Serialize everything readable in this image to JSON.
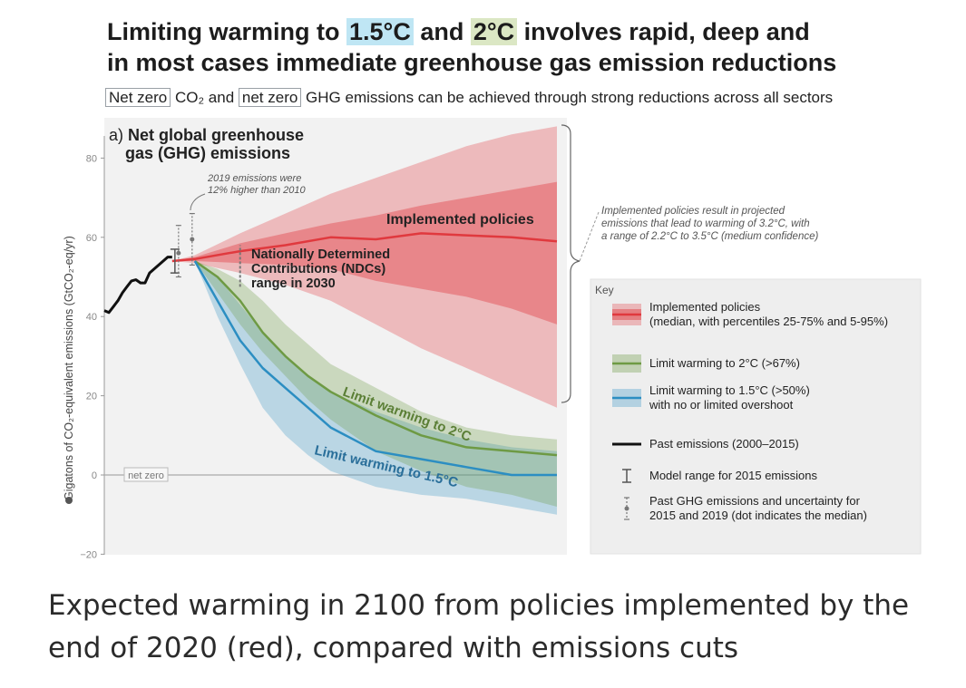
{
  "header": {
    "title_pre": "Limiting warming to ",
    "title_hl1": "1.5°C",
    "title_mid": " and ",
    "title_hl2": "2°C",
    "title_post1": " involves rapid, deep and",
    "title_line2": "in most cases immediate greenhouse gas emission reductions",
    "subtitle_box1": "Net zero",
    "subtitle_co2": " CO₂ and ",
    "subtitle_box2": "net zero",
    "subtitle_rest": " GHG emissions can be achieved through strong reductions across all sectors"
  },
  "chart_data": {
    "type": "area",
    "panel_title_prefix": "a)",
    "panel_title_line1": "Net global greenhouse",
    "panel_title_line2": "gas (GHG) emissions",
    "ylabel": "Gigatons of CO₂-equivalent emissions (GtCO₂-eq/yr)",
    "ylim": [
      -20,
      85
    ],
    "xlim": [
      2000,
      2100
    ],
    "yticks": [
      "80",
      "60",
      "40",
      "20",
      "0",
      "−20"
    ],
    "net_zero_label": "net zero",
    "past_emissions": {
      "name": "Past emissions (2000–2015)",
      "x": [
        2000,
        2001,
        2002,
        2003,
        2004,
        2005,
        2006,
        2007,
        2008,
        2009,
        2010,
        2011,
        2012,
        2013,
        2014,
        2015
      ],
      "y": [
        41.5,
        41,
        42.5,
        44,
        46,
        47.5,
        49,
        49.3,
        48.5,
        48.5,
        51,
        52,
        53,
        54,
        55,
        55
      ]
    },
    "series": [
      {
        "name": "Implemented policies",
        "color": "#e0393e",
        "x": [
          2015,
          2020,
          2030,
          2040,
          2050,
          2060,
          2070,
          2080,
          2090,
          2100
        ],
        "median": [
          54,
          54.5,
          56.5,
          58,
          60,
          59.5,
          61,
          60.5,
          60,
          59
        ],
        "p25": [
          54,
          54,
          53.5,
          53,
          52,
          49,
          47,
          45,
          42,
          38
        ],
        "p75": [
          54,
          55,
          58.5,
          61,
          63.5,
          65.5,
          68,
          70,
          72,
          74
        ],
        "p5": [
          54,
          53.5,
          51,
          48,
          44,
          38,
          32,
          27,
          22,
          17
        ],
        "p95": [
          54,
          55.5,
          61,
          66,
          71,
          75,
          79,
          83,
          86,
          88
        ]
      },
      {
        "name": "Limit warming to 2°C",
        "color": "#6e9a44",
        "x": [
          2020,
          2025,
          2030,
          2035,
          2040,
          2045,
          2050,
          2060,
          2070,
          2080,
          2090,
          2100
        ],
        "median": [
          54,
          50,
          44,
          36,
          30,
          25,
          21,
          15,
          10,
          7,
          6,
          5
        ],
        "low": [
          54,
          46,
          38,
          31,
          25,
          19,
          14,
          6,
          1,
          -3,
          -5,
          -8
        ],
        "high": [
          54,
          52,
          49,
          44,
          38,
          33,
          28,
          22,
          16,
          12,
          10,
          9
        ]
      },
      {
        "name": "Limit warming to 1.5°C",
        "color": "#2c8ec2",
        "x": [
          2020,
          2025,
          2030,
          2035,
          2040,
          2045,
          2050,
          2060,
          2070,
          2080,
          2090,
          2100
        ],
        "median": [
          54,
          44,
          34,
          27,
          22,
          17,
          12,
          6,
          4,
          2,
          0,
          0
        ],
        "low": [
          54,
          40,
          28,
          17,
          10,
          5,
          1,
          -3,
          -5,
          -6,
          -8,
          -10
        ],
        "high": [
          54,
          50,
          43,
          36,
          30,
          25,
          21,
          16,
          12,
          9,
          7,
          6
        ]
      }
    ],
    "annotations": {
      "emissions_2019": [
        "2019 emissions were",
        "12% higher than 2010"
      ],
      "ndc": [
        "Nationally Determined",
        "Contributions (NDCs)",
        "range in 2030"
      ],
      "implemented_label": "Implemented policies",
      "label_2c": "Limit warming to 2°C",
      "label_15c": "Limit warming to 1.5°C",
      "projection": [
        "Implemented policies result in projected",
        "emissions that lead to warming of 3.2°C, with",
        "a range of 2.2°C to 3.5°C (medium confidence)"
      ]
    },
    "legend": {
      "title": "Key",
      "entries": [
        {
          "lines": [
            "Implemented policies",
            "(median, with percentiles 25-75% and 5-95%)"
          ]
        },
        {
          "lines": [
            "Limit warming to 2°C (>67%)"
          ]
        },
        {
          "lines": [
            "Limit warming to 1.5°C (>50%)",
            "with no or limited overshoot"
          ]
        },
        {
          "lines": [
            "Past emissions (2000–2015)"
          ]
        },
        {
          "lines": [
            "Model range for 2015 emissions"
          ]
        },
        {
          "lines": [
            "Past GHG emissions and uncertainty for",
            "2015 and 2019 (dot indicates the median)"
          ]
        }
      ]
    }
  },
  "caption": "Expected warming in 2100 from policies implemented by the end of 2020 (red), compared with emissions cuts"
}
